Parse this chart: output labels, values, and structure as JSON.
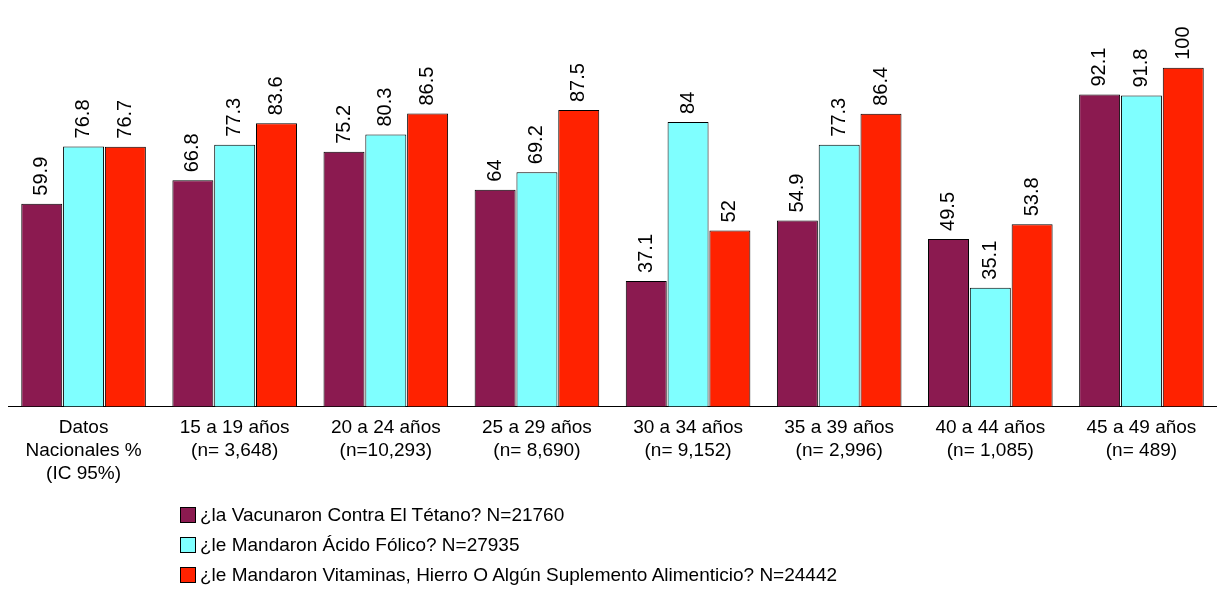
{
  "chart_data": {
    "type": "bar",
    "categories": [
      "Datos\nNacionales %\n(IC 95%)",
      "15 a 19 años\n(n= 3,648)",
      "20 a 24 años\n(n=10,293)",
      "25 a 29 años\n(n= 8,690)",
      "30 a 34 años\n(n= 9,152)",
      "35 a 39 años\n(n= 2,996)",
      "40 a 44 años\n(n= 1,085)",
      "45 a 49 años\n(n= 489)"
    ],
    "series": [
      {
        "name": "¿la Vacunaron Contra El Tétano? N=21760",
        "color": "#8b1a50",
        "values": [
          59.9,
          66.8,
          75.2,
          64,
          37.1,
          54.9,
          49.5,
          92.1
        ]
      },
      {
        "name": "¿le Mandaron Ácido Fólico? N=27935",
        "color": "#7fffff",
        "values": [
          76.8,
          77.3,
          80.3,
          69.2,
          84,
          77.3,
          35.1,
          91.8
        ]
      },
      {
        "name": "¿le Mandaron Vitaminas, Hierro O Algún Suplemento Alimenticio? N=24442",
        "color": "#ff2200",
        "values": [
          76.7,
          83.6,
          86.5,
          87.5,
          52,
          86.4,
          53.8,
          100
        ]
      }
    ],
    "data_labels": true,
    "grid": false,
    "legend": "bottom"
  }
}
